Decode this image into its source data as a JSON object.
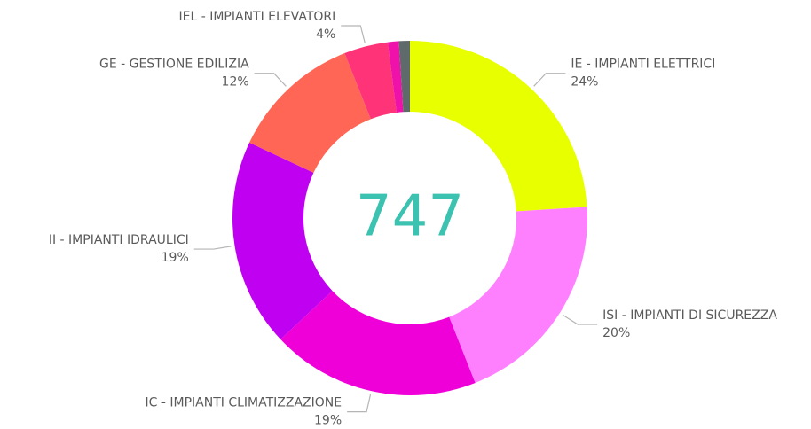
{
  "chart_data": {
    "type": "donut",
    "center_label": 747,
    "categories": [
      "IE - IMPIANTI ELETTRICI",
      "ISI - IMPIANTI DI SICUREZZA",
      "IC - IMPIANTI CLIMATIZZAZIONE",
      "II - IMPIANTI IDRAULICI",
      "GE - GESTIONE EDILIZIA",
      "IEL - IMPIANTI ELEVATORI",
      null,
      null
    ],
    "values": [
      24,
      20,
      19,
      19,
      12,
      4,
      1,
      1
    ],
    "value_labels": [
      "24%",
      "20%",
      "19%",
      "19%",
      "12%",
      "4%",
      null,
      null
    ],
    "colors": [
      "#e8ff00",
      "#ff80ff",
      "#f000d8",
      "#c000f0",
      "#ff6655",
      "#ff3377",
      "#ee11aa",
      "#5f6a6a"
    ]
  }
}
